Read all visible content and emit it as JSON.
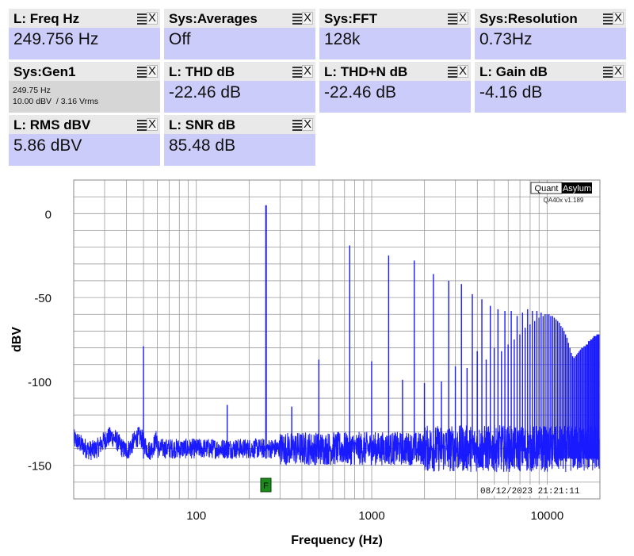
{
  "tiles": [
    {
      "title": "L: Freq Hz",
      "value": "249.756 Hz"
    },
    {
      "title": "Sys:Averages",
      "value": "Off"
    },
    {
      "title": "Sys:FFT",
      "value": "128k"
    },
    {
      "title": "Sys:Resolution",
      "value": "0.73Hz"
    },
    {
      "title": "Sys:Gen1",
      "line1": "249.75 Hz",
      "line2": "10.00 dBV  / 3.16 Vrms"
    },
    {
      "title": "L: THD dB",
      "value": "-22.46 dB"
    },
    {
      "title": "L: THD+N dB",
      "value": "-22.46 dB"
    },
    {
      "title": "L: Gain dB",
      "value": "-4.16 dB"
    },
    {
      "title": "L: RMS dBV",
      "value": "5.86 dBV"
    },
    {
      "title": "L: SNR dB",
      "value": "85.48 dB"
    }
  ],
  "tile_icons": {
    "menu": "menu-icon",
    "close": "X"
  },
  "brand": {
    "left": "Quant",
    "right": "Asylum",
    "version": "QA40x v1.189"
  },
  "timestamp": "08/12/2023  21:21:11",
  "marker_label": "F",
  "colors": {
    "trace": "#1a1aff",
    "value_bg": "#ccccfb",
    "marker": "#1a8a1a"
  },
  "chart_data": {
    "type": "line",
    "xscale": "log",
    "xlim": [
      20,
      20000
    ],
    "ylim": [
      -170,
      20
    ],
    "xlabel": "Frequency (Hz)",
    "ylabel": "dBV",
    "xticks": [
      100,
      1000,
      10000
    ],
    "xtick_labels": [
      "100",
      "1000",
      "10000"
    ],
    "yticks": [
      0,
      -50,
      -100,
      -150
    ],
    "ytick_labels": [
      "0",
      "-50",
      "-100",
      "-150"
    ],
    "grid": true,
    "series": [
      {
        "fundamental_hz": 249.756,
        "fundamental_dbv": 5.0,
        "noise_floor_dbv": -140,
        "peaks": [
          {
            "x": 50,
            "y": -79
          },
          {
            "x": 150,
            "y": -114
          },
          {
            "x": 249.756,
            "y": 5
          },
          {
            "x": 350,
            "y": -115
          },
          {
            "x": 499.5,
            "y": -87
          },
          {
            "x": 749.3,
            "y": -19
          },
          {
            "x": 999,
            "y": -88
          },
          {
            "x": 1248.8,
            "y": -25
          },
          {
            "x": 1498.5,
            "y": -99
          },
          {
            "x": 1748.3,
            "y": -28
          },
          {
            "x": 1998,
            "y": -101
          },
          {
            "x": 2247.8,
            "y": -36
          },
          {
            "x": 2497.6,
            "y": -100
          },
          {
            "x": 2747.3,
            "y": -40
          },
          {
            "x": 2997.1,
            "y": -91
          },
          {
            "x": 3246.8,
            "y": -42
          },
          {
            "x": 3496.6,
            "y": -92
          },
          {
            "x": 3746.3,
            "y": -48
          },
          {
            "x": 3996.1,
            "y": -82
          },
          {
            "x": 4245.9,
            "y": -51
          },
          {
            "x": 4495.6,
            "y": -87
          },
          {
            "x": 4745.4,
            "y": -55
          },
          {
            "x": 4995.1,
            "y": -80
          },
          {
            "x": 5244.9,
            "y": -57
          },
          {
            "x": 5494.6,
            "y": -82
          },
          {
            "x": 5744.4,
            "y": -58
          },
          {
            "x": 5994.1,
            "y": -78
          },
          {
            "x": 6243.9,
            "y": -58
          },
          {
            "x": 6493.7,
            "y": -75
          },
          {
            "x": 6743.4,
            "y": -61
          },
          {
            "x": 6993.2,
            "y": -72
          },
          {
            "x": 7242.9,
            "y": -59
          },
          {
            "x": 7492.7,
            "y": -68
          },
          {
            "x": 7742.4,
            "y": -57
          },
          {
            "x": 7992.2,
            "y": -66
          },
          {
            "x": 8241.9,
            "y": -58
          },
          {
            "x": 8491.7,
            "y": -64
          },
          {
            "x": 8741.5,
            "y": -58
          },
          {
            "x": 8991.2,
            "y": -62
          },
          {
            "x": 9241,
            "y": -59
          },
          {
            "x": 9490.7,
            "y": -61
          },
          {
            "x": 9740.5,
            "y": -60
          },
          {
            "x": 9990.2,
            "y": -60
          },
          {
            "x": 10240,
            "y": -60
          },
          {
            "x": 10489.8,
            "y": -61
          },
          {
            "x": 10739.5,
            "y": -61
          },
          {
            "x": 10989.3,
            "y": -62
          },
          {
            "x": 11239,
            "y": -63
          },
          {
            "x": 11488.8,
            "y": -64
          },
          {
            "x": 11738.5,
            "y": -65
          },
          {
            "x": 11988.3,
            "y": -67
          },
          {
            "x": 12238,
            "y": -68
          },
          {
            "x": 12487.8,
            "y": -70
          },
          {
            "x": 12737.6,
            "y": -72
          },
          {
            "x": 12987.3,
            "y": -74
          },
          {
            "x": 13237.1,
            "y": -77
          },
          {
            "x": 13486.8,
            "y": -80
          },
          {
            "x": 13736.6,
            "y": -83
          },
          {
            "x": 13986.3,
            "y": -85
          },
          {
            "x": 14236.1,
            "y": -86
          },
          {
            "x": 14485.8,
            "y": -85
          },
          {
            "x": 14735.6,
            "y": -84
          },
          {
            "x": 14985.4,
            "y": -83
          },
          {
            "x": 15235.1,
            "y": -82
          },
          {
            "x": 15484.9,
            "y": -81
          },
          {
            "x": 15734.6,
            "y": -80
          },
          {
            "x": 15984.4,
            "y": -80
          },
          {
            "x": 16234.1,
            "y": -79
          },
          {
            "x": 16483.9,
            "y": -79
          },
          {
            "x": 16733.6,
            "y": -78
          },
          {
            "x": 16983.4,
            "y": -78
          },
          {
            "x": 17233.2,
            "y": -76
          },
          {
            "x": 17482.9,
            "y": -76
          },
          {
            "x": 17732.7,
            "y": -75
          },
          {
            "x": 17982.4,
            "y": -75
          },
          {
            "x": 18232.2,
            "y": -74
          },
          {
            "x": 18481.9,
            "y": -73
          },
          {
            "x": 18731.7,
            "y": -73
          },
          {
            "x": 18981.4,
            "y": -73
          },
          {
            "x": 19231.2,
            "y": -72
          },
          {
            "x": 19480.9,
            "y": -72
          },
          {
            "x": 19730.7,
            "y": -72
          }
        ]
      }
    ]
  }
}
